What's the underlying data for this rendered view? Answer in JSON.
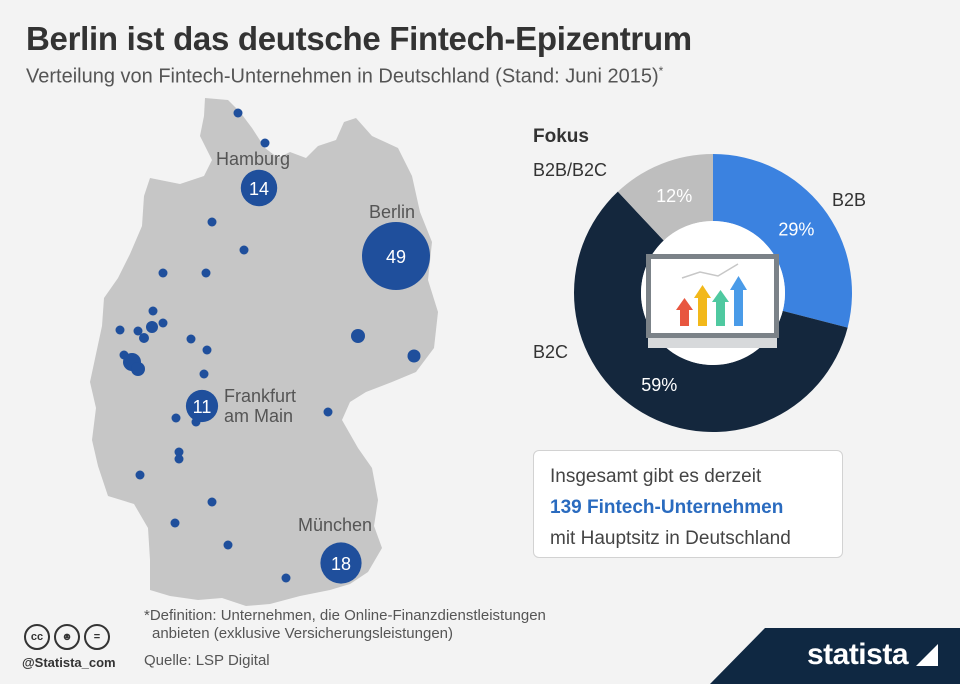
{
  "title": "Berlin ist das deutsche Fintech-Epizentrum",
  "subtitle": "Verteilung von Fintech-Unternehmen in Deutschland (Stand: Juni 2015)",
  "subtitle_mark": "*",
  "colors": {
    "map_fill": "#c6c6c6",
    "dot": "#1f4f9c",
    "b2b": "#3b82e0",
    "b2c": "#14273d",
    "b2b_b2c": "#bebebe"
  },
  "chart_data": [
    {
      "type": "bubble-map",
      "cities": [
        {
          "name": "Hamburg",
          "value": 14
        },
        {
          "name": "Berlin",
          "value": 49
        },
        {
          "name": "Frankfurt am Main",
          "name_lines": [
            "Frankfurt",
            "am Main"
          ],
          "value": 11
        },
        {
          "name": "München",
          "value": 18
        }
      ]
    },
    {
      "type": "pie",
      "title": "Fokus",
      "slices": [
        {
          "name": "B2B",
          "value": 29,
          "label": "29%",
          "color": "#3b82e0"
        },
        {
          "name": "B2C",
          "value": 59,
          "label": "59%",
          "color": "#14273d"
        },
        {
          "name": "B2B/B2C",
          "value": 12,
          "label": "12%",
          "color": "#bebebe"
        }
      ]
    }
  ],
  "info": {
    "line1": "Insgesamt gibt es derzeit",
    "line2": "139 Fintech-Unternehmen",
    "line3": "mit Hauptsitz in Deutschland"
  },
  "footnote": {
    "line1": "*Definition: Unternehmen, die Online-Finanzdienstleistungen",
    "line2": "anbieten (exklusive Versicherungsleistungen)"
  },
  "source": "Quelle: LSP Digital",
  "license_icons": [
    "cc-icon",
    "person-icon",
    "equals-icon"
  ],
  "handle": "@Statista_com",
  "brand": "statista"
}
